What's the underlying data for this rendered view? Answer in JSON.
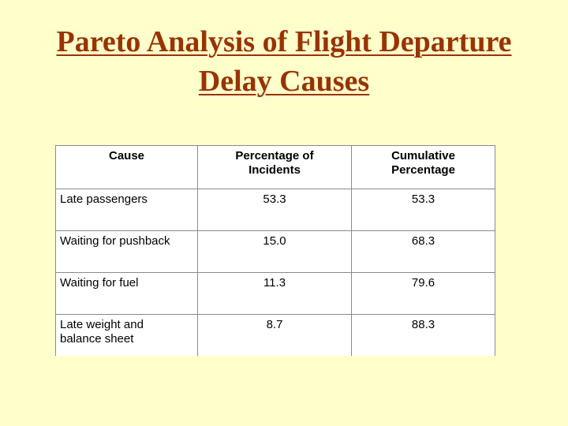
{
  "title": "Pareto Analysis of Flight Departure\nDelay Causes",
  "table": {
    "header": [
      "Cause",
      "Percentage of\nIncidents",
      "Cumulative\nPercentage"
    ],
    "rows": [
      [
        "Late passengers",
        "53.3",
        "53.3"
      ],
      [
        "Waiting for pushback",
        "15.0",
        "68.3"
      ],
      [
        "Waiting for fuel",
        "11.3",
        "79.6"
      ],
      [
        "Late weight and\nbalance sheet",
        "8.7",
        "88.3"
      ]
    ]
  }
}
